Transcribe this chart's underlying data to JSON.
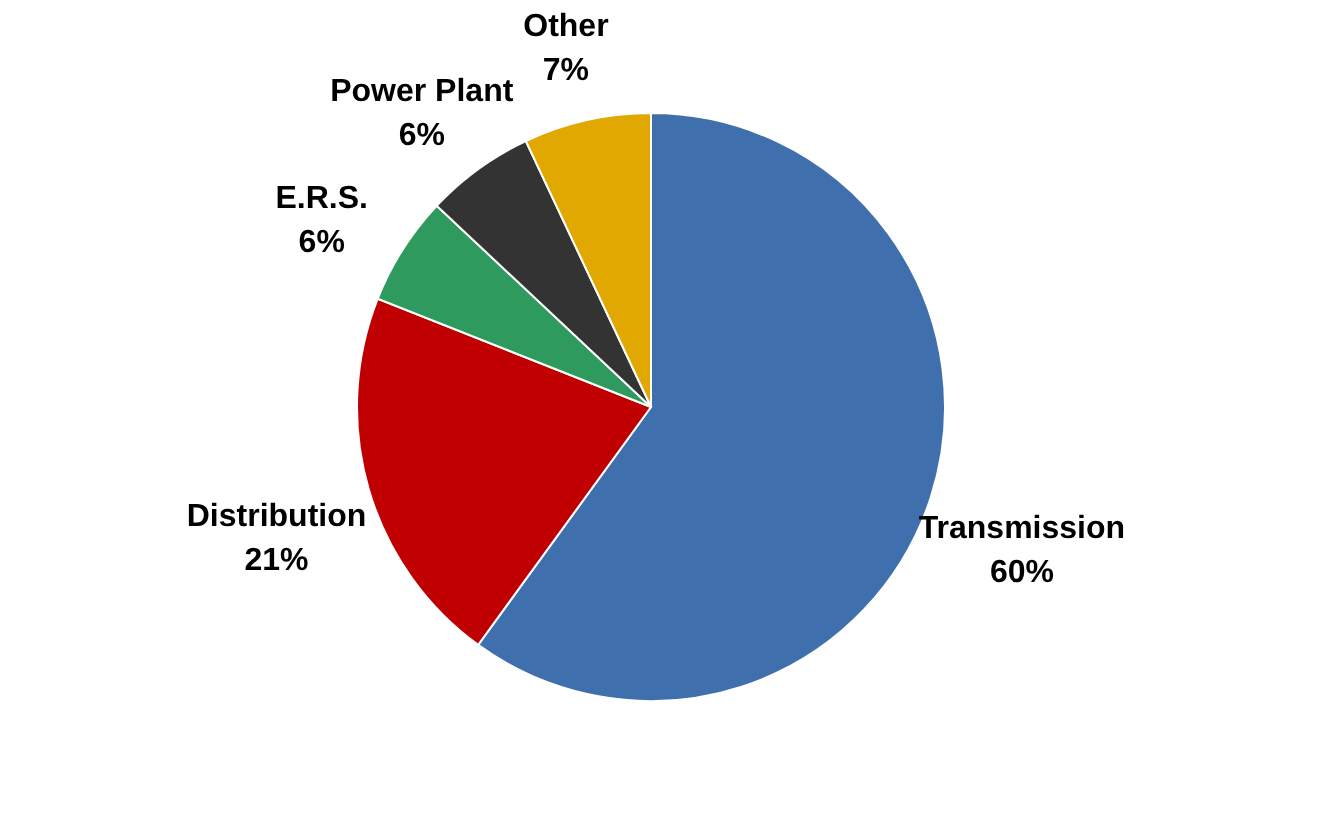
{
  "chart_data": {
    "type": "pie",
    "categories": [
      "Transmission",
      "Distribution",
      "E.R.S.",
      "Power Plant",
      "Other"
    ],
    "values": [
      60,
      21,
      6,
      6,
      7
    ],
    "value_labels": [
      "60%",
      "21%",
      "6%",
      "6%",
      "7%"
    ],
    "colors": [
      "#3f6fad",
      "#c00000",
      "#2e9a5e",
      "#333333",
      "#e0a800"
    ],
    "legend": false
  }
}
